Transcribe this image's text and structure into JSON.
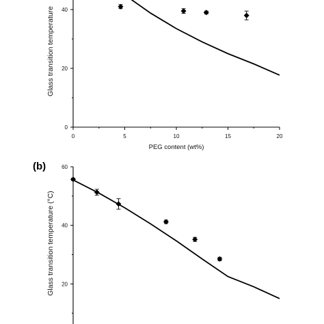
{
  "chart_data": [
    {
      "type": "scatter",
      "panel_label": "",
      "xlabel": "PEG content (wt%)",
      "ylabel": "Glass transition temperature",
      "xlim": [
        0,
        20
      ],
      "ylim": [
        0,
        60
      ],
      "xticks": [
        "0",
        "5",
        "10",
        "15",
        "20"
      ],
      "yticks": [
        "0",
        "20",
        "40"
      ],
      "series": [
        {
          "kind": "points",
          "x": [
            4.6,
            10.7,
            12.9,
            16.8
          ],
          "y": [
            41.0,
            39.5,
            39.0,
            38.0
          ],
          "err": [
            0.7,
            0.8,
            0.5,
            1.5
          ]
        },
        {
          "kind": "line",
          "x": [
            5.6,
            7.5,
            10.0,
            12.5,
            15.0,
            17.5,
            20.0
          ],
          "y": [
            43.5,
            38.8,
            33.5,
            29.0,
            25.0,
            21.5,
            17.7
          ]
        }
      ]
    },
    {
      "type": "scatter",
      "panel_label": "(b)",
      "xlabel": "",
      "ylabel": "Glass transition temperature (°C)",
      "xlim": [
        0,
        20
      ],
      "ylim": [
        0,
        60
      ],
      "xticks": [],
      "yticks": [
        "20",
        "40",
        "60"
      ],
      "series": [
        {
          "kind": "points",
          "x": [
            0.0,
            2.3,
            4.4,
            9.0,
            11.8,
            14.2
          ],
          "y": [
            55.7,
            51.3,
            47.3,
            41.2,
            35.2,
            28.5
          ],
          "err": [
            0.4,
            1.0,
            1.8,
            0.6,
            0.7,
            0.6
          ]
        },
        {
          "kind": "line",
          "x": [
            0.0,
            2.5,
            5.0,
            7.5,
            10.0,
            12.5,
            15.0,
            17.5,
            20.0
          ],
          "y": [
            55.5,
            51.0,
            46.0,
            40.5,
            34.7,
            28.5,
            22.5,
            19.0,
            15.0
          ]
        }
      ]
    }
  ]
}
